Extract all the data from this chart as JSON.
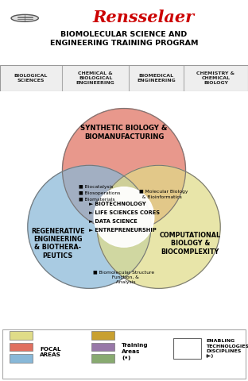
{
  "bg_color": "#f2f2f2",
  "title_logo_color": "#cc0000",
  "main_title": "BIOMOLECULAR SCIENCE AND\nENGINEERING TRAINING PROGRAM",
  "dept_labels": [
    "BIOLOGICAL\nSCIENCES",
    "CHEMICAL &\nBIOLOGICAL\nENGINEERING",
    "BIOMEDICAL\nENGINEERING",
    "CHEMISTRY &\nCHEMICAL\nBIOLOGY"
  ],
  "circle_top_label": "SYNTHETIC BIOLOGY &\nBIOMANUFACTURING",
  "circle_left_label": "REGENERATIVE\nENGINEERING\n& BIOTHERA-\nPEUTICS",
  "circle_right_label": "COMPUTATIONAL\nBIOLOGY &\nBIOCOMPLEXITY",
  "circle_top_color": "#e07060",
  "circle_left_color": "#88b8d8",
  "circle_right_color": "#e0dc88",
  "overlap_tl_items": [
    "■ Biocatalysis",
    "■ Biosoperations",
    "■ Biomaterials"
  ],
  "overlap_tr_item": "■ Molecular Biology\n  & Bioinformatics",
  "overlap_bottom_item": "■ Biomolecular Structure\n  Function, &\n  Analysis",
  "center_items": [
    "► BIOTECHNOLOGY",
    "► LIFE SCIENCES CORES",
    "► DATA SCIENCE",
    "► ENTREPRENEURSHIP"
  ],
  "legend_focal_colors": [
    "#e0dc88",
    "#e07060",
    "#88b8d8"
  ],
  "legend_training_colors": [
    "#c8a030",
    "#9878a8",
    "#88aa70"
  ],
  "legend_focal_label": "FOCAL\nAREAS",
  "legend_training_label": "Training\nAreas\n(•)",
  "legend_enabling_label": "ENABLING\nTECHNOLOGIES/\nDISCIPLINES\n(►)"
}
